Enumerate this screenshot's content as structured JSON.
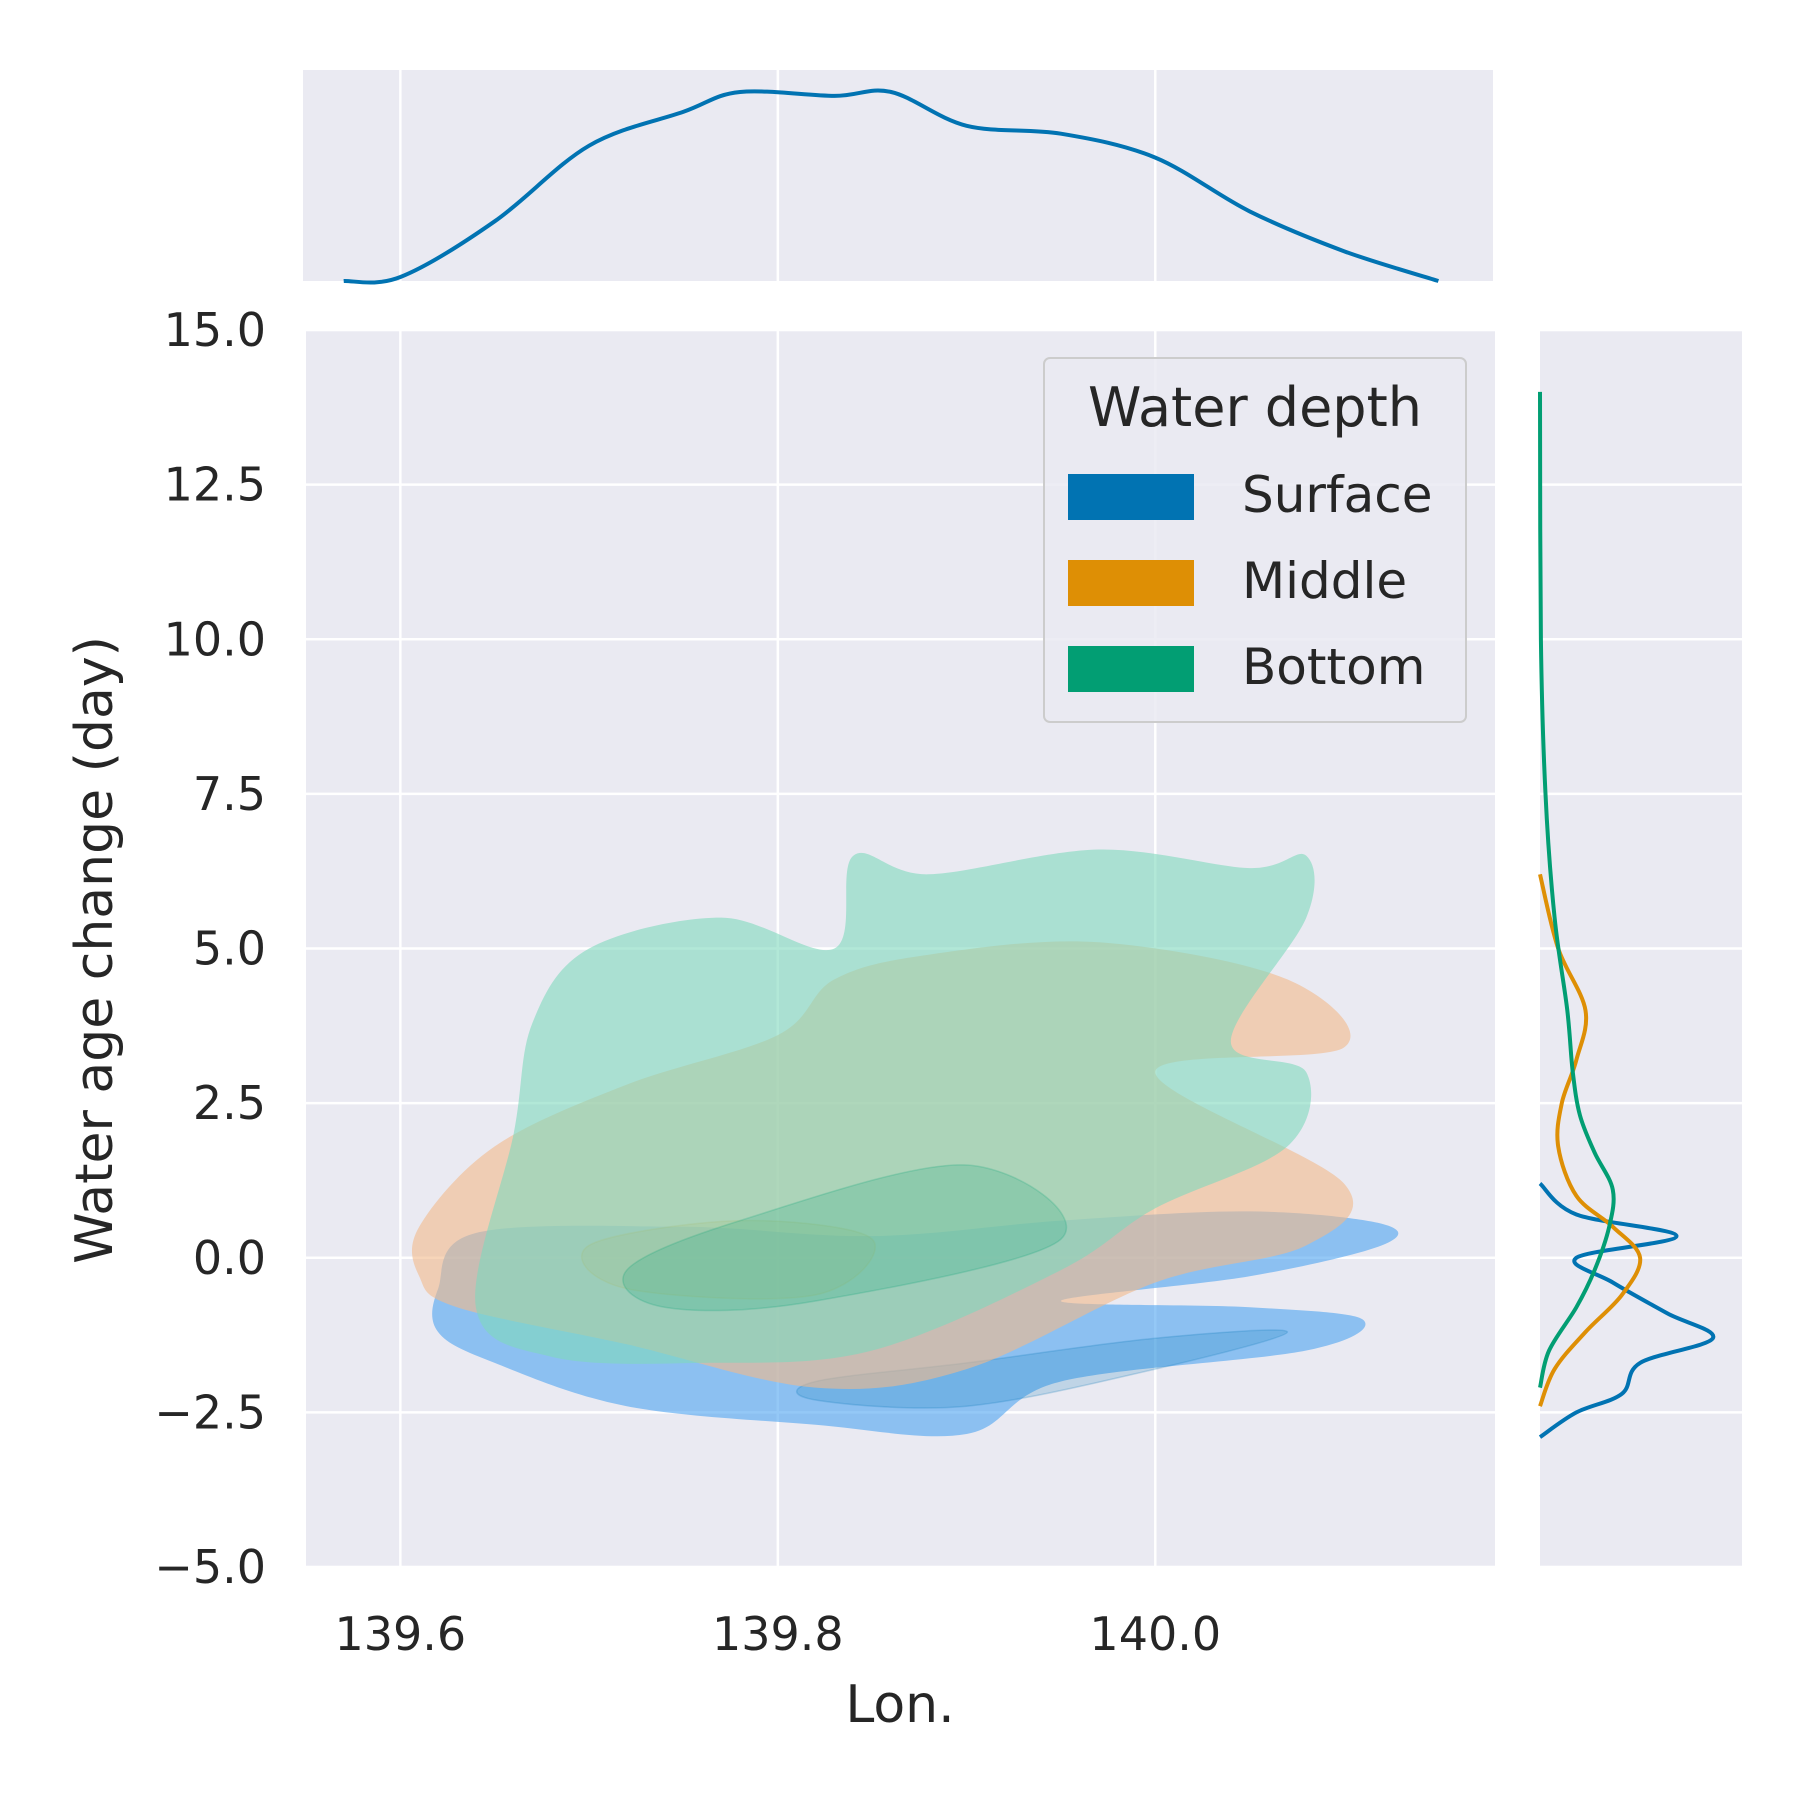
{
  "chart_data": {
    "type": "kde-joint",
    "xlabel": "Lon.",
    "ylabel": "Water age change (day)",
    "xlim": [
      139.55,
      140.18
    ],
    "ylim": [
      -5.0,
      15.0
    ],
    "xticks": [
      139.6,
      139.8,
      140.0
    ],
    "xtick_labels": [
      "139.6",
      "139.8",
      "140.0"
    ],
    "yticks": [
      -5.0,
      -2.5,
      0.0,
      2.5,
      5.0,
      7.5,
      10.0,
      12.5,
      15.0
    ],
    "ytick_labels": [
      "−5.0",
      "−2.5",
      "0.0",
      "2.5",
      "5.0",
      "7.5",
      "10.0",
      "12.5",
      "15.0"
    ],
    "grid": true,
    "legend": {
      "title": "Water depth",
      "placement": "top-right",
      "entries": [
        "Surface",
        "Middle",
        "Bottom"
      ]
    },
    "series": [
      {
        "name": "Surface",
        "color": "#0173b2",
        "fill": "#4da3f0",
        "region": [
          [
            139.62,
            -0.5
          ],
          [
            139.64,
            0.4
          ],
          [
            139.75,
            0.5
          ],
          [
            139.85,
            0.35
          ],
          [
            139.95,
            0.6
          ],
          [
            140.05,
            0.75
          ],
          [
            140.12,
            0.55
          ],
          [
            140.12,
            0.2
          ],
          [
            140.05,
            -0.3
          ],
          [
            139.95,
            -0.7
          ],
          [
            140.05,
            -0.8
          ],
          [
            140.11,
            -1.0
          ],
          [
            140.08,
            -1.5
          ],
          [
            139.95,
            -2.0
          ],
          [
            139.9,
            -2.85
          ],
          [
            139.82,
            -2.7
          ],
          [
            139.72,
            -2.4
          ],
          [
            139.65,
            -1.7
          ],
          [
            139.62,
            -1.2
          ]
        ],
        "core": [
          [
            139.82,
            -2.0
          ],
          [
            139.9,
            -1.7
          ],
          [
            140.0,
            -1.3
          ],
          [
            140.07,
            -1.2
          ],
          [
            140.0,
            -1.8
          ],
          [
            139.9,
            -2.4
          ],
          [
            139.82,
            -2.3
          ]
        ],
        "marginal_x": [
          [
            139.57,
            0.0
          ],
          [
            139.6,
            0.02
          ],
          [
            139.65,
            0.3
          ],
          [
            139.7,
            0.68
          ],
          [
            139.75,
            0.85
          ],
          [
            139.78,
            0.95
          ],
          [
            139.83,
            0.93
          ],
          [
            139.86,
            0.95
          ],
          [
            139.9,
            0.78
          ],
          [
            139.95,
            0.74
          ],
          [
            140.0,
            0.62
          ],
          [
            140.05,
            0.35
          ],
          [
            140.1,
            0.15
          ],
          [
            140.15,
            0.0
          ]
        ],
        "marginal_y": [
          [
            -2.9,
            0.0
          ],
          [
            -2.5,
            0.2
          ],
          [
            -2.2,
            0.45
          ],
          [
            -1.7,
            0.55
          ],
          [
            -1.3,
            0.95
          ],
          [
            -0.9,
            0.7
          ],
          [
            -0.4,
            0.4
          ],
          [
            0.0,
            0.2
          ],
          [
            0.35,
            0.75
          ],
          [
            0.7,
            0.2
          ],
          [
            1.2,
            0.0
          ]
        ]
      },
      {
        "name": "Middle",
        "color": "#de8f05",
        "fill": "#f2b98a",
        "region": [
          [
            139.61,
            0.5
          ],
          [
            139.65,
            1.8
          ],
          [
            139.72,
            2.8
          ],
          [
            139.8,
            3.6
          ],
          [
            139.83,
            4.5
          ],
          [
            139.88,
            4.9
          ],
          [
            139.97,
            5.1
          ],
          [
            140.07,
            4.5
          ],
          [
            140.1,
            3.4
          ],
          [
            140.0,
            3.0
          ],
          [
            140.1,
            1.2
          ],
          [
            140.08,
            0.2
          ],
          [
            140.0,
            -0.4
          ],
          [
            139.9,
            -1.8
          ],
          [
            139.82,
            -2.1
          ],
          [
            139.72,
            -1.4
          ],
          [
            139.63,
            -0.8
          ],
          [
            139.61,
            -0.3
          ]
        ],
        "core": [
          [
            139.7,
            0.2
          ],
          [
            139.78,
            0.6
          ],
          [
            139.85,
            0.3
          ],
          [
            139.82,
            -0.6
          ],
          [
            139.72,
            -0.5
          ]
        ],
        "marginal_y": [
          [
            -2.4,
            0.0
          ],
          [
            -1.8,
            0.08
          ],
          [
            -1.2,
            0.25
          ],
          [
            -0.6,
            0.45
          ],
          [
            0.0,
            0.55
          ],
          [
            0.5,
            0.4
          ],
          [
            1.0,
            0.2
          ],
          [
            1.8,
            0.1
          ],
          [
            2.5,
            0.12
          ],
          [
            3.2,
            0.2
          ],
          [
            4.0,
            0.25
          ],
          [
            5.0,
            0.1
          ],
          [
            6.2,
            0.0
          ]
        ]
      },
      {
        "name": "Bottom",
        "color": "#029e73",
        "fill": "#7fd9bd",
        "region": [
          [
            139.64,
            -0.8
          ],
          [
            139.66,
            2.0
          ],
          [
            139.67,
            3.8
          ],
          [
            139.7,
            5.0
          ],
          [
            139.77,
            5.5
          ],
          [
            139.83,
            5.0
          ],
          [
            139.84,
            6.5
          ],
          [
            139.88,
            6.2
          ],
          [
            139.97,
            6.6
          ],
          [
            140.05,
            6.3
          ],
          [
            140.08,
            6.5
          ],
          [
            140.08,
            5.5
          ],
          [
            140.04,
            3.5
          ],
          [
            140.08,
            3.0
          ],
          [
            140.07,
            1.8
          ],
          [
            140.0,
            0.8
          ],
          [
            139.95,
            -0.2
          ],
          [
            139.85,
            -1.5
          ],
          [
            139.76,
            -1.7
          ],
          [
            139.68,
            -1.6
          ]
        ],
        "core": [
          [
            139.72,
            -0.2
          ],
          [
            139.78,
            0.6
          ],
          [
            139.9,
            1.5
          ],
          [
            139.95,
            0.3
          ],
          [
            139.82,
            -0.7
          ],
          [
            139.74,
            -0.8
          ]
        ],
        "marginal_y": [
          [
            -2.1,
            0.0
          ],
          [
            -1.5,
            0.05
          ],
          [
            -0.8,
            0.2
          ],
          [
            -0.2,
            0.3
          ],
          [
            0.5,
            0.38
          ],
          [
            1.1,
            0.4
          ],
          [
            1.7,
            0.3
          ],
          [
            2.3,
            0.22
          ],
          [
            3.0,
            0.18
          ],
          [
            4.0,
            0.15
          ],
          [
            5.5,
            0.08
          ],
          [
            7.5,
            0.03
          ],
          [
            10.0,
            0.005
          ],
          [
            14.0,
            0.0
          ]
        ]
      }
    ]
  }
}
